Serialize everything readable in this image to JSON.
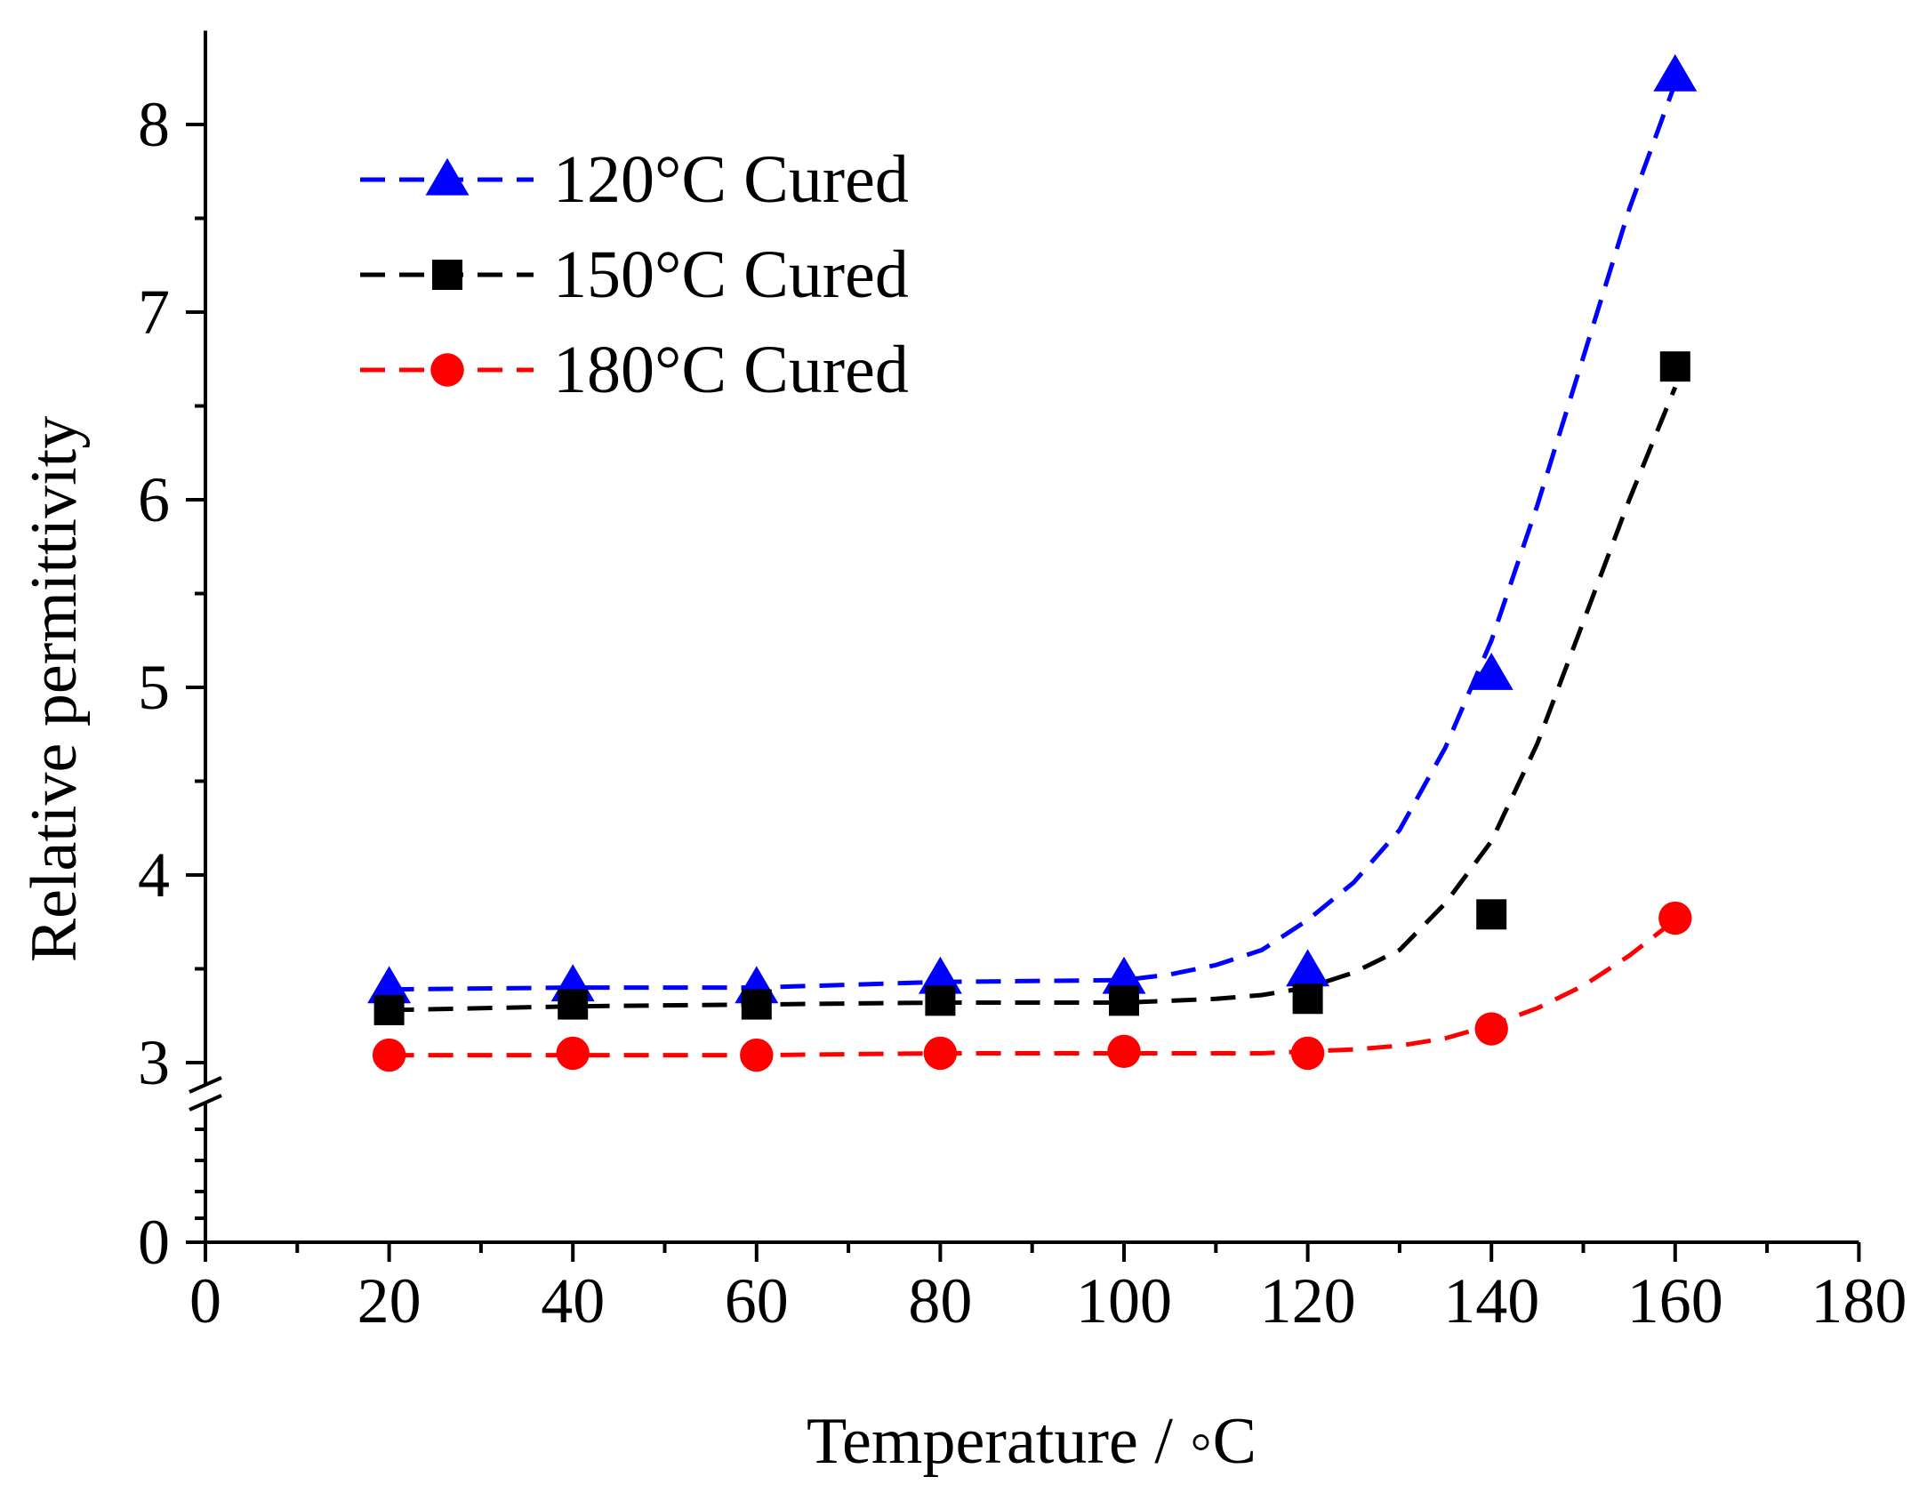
{
  "chart_data": {
    "type": "scatter",
    "xlabel": "Temperature / ◦C",
    "ylabel": "Relative permittivity",
    "xlim": [
      0,
      180
    ],
    "ylim": [
      0,
      8.5
    ],
    "y_axis_break": [
      0.5,
      3
    ],
    "x_ticks": [
      0,
      20,
      40,
      60,
      80,
      100,
      120,
      140,
      160,
      180
    ],
    "x_tick_labels": [
      "0",
      "20",
      "40",
      "60",
      "80",
      "100",
      "120",
      "140",
      "160",
      "180"
    ],
    "y_ticks": [
      0,
      3,
      4,
      5,
      6,
      7,
      8
    ],
    "y_tick_labels": [
      "0",
      "3",
      "4",
      "5",
      "6",
      "7",
      "8"
    ],
    "grid": false,
    "legend_position": "top-left",
    "x": [
      20,
      40,
      60,
      80,
      100,
      120,
      140,
      160
    ],
    "series": [
      {
        "name": "120°C Cured",
        "marker": "triangle",
        "color": "#0000ff",
        "values": [
          3.4,
          3.41,
          3.4,
          3.45,
          3.45,
          3.49,
          5.07,
          8.26
        ],
        "fit": [
          [
            20,
            3.39
          ],
          [
            40,
            3.4
          ],
          [
            60,
            3.4
          ],
          [
            80,
            3.43
          ],
          [
            100,
            3.44
          ],
          [
            105,
            3.47
          ],
          [
            110,
            3.52
          ],
          [
            115,
            3.6
          ],
          [
            120,
            3.76
          ],
          [
            125,
            3.96
          ],
          [
            130,
            4.24
          ],
          [
            135,
            4.68
          ],
          [
            140,
            5.25
          ],
          [
            145,
            5.97
          ],
          [
            150,
            6.76
          ],
          [
            155,
            7.55
          ],
          [
            160,
            8.22
          ]
        ]
      },
      {
        "name": "150°C Cured",
        "marker": "square",
        "color": "#000000",
        "values": [
          3.28,
          3.31,
          3.31,
          3.33,
          3.33,
          3.34,
          3.79,
          6.71
        ],
        "fit": [
          [
            20,
            3.28
          ],
          [
            40,
            3.3
          ],
          [
            60,
            3.31
          ],
          [
            80,
            3.32
          ],
          [
            100,
            3.32
          ],
          [
            110,
            3.34
          ],
          [
            115,
            3.36
          ],
          [
            120,
            3.4
          ],
          [
            125,
            3.48
          ],
          [
            130,
            3.6
          ],
          [
            135,
            3.85
          ],
          [
            140,
            4.18
          ],
          [
            145,
            4.7
          ],
          [
            150,
            5.35
          ],
          [
            155,
            6.0
          ],
          [
            160,
            6.6
          ]
        ]
      },
      {
        "name": "180°C Cured",
        "marker": "circle",
        "color": "#ff0000",
        "values": [
          3.04,
          3.05,
          3.04,
          3.05,
          3.06,
          3.05,
          3.18,
          3.77
        ],
        "fit": [
          [
            20,
            3.04
          ],
          [
            40,
            3.04
          ],
          [
            60,
            3.04
          ],
          [
            80,
            3.05
          ],
          [
            100,
            3.05
          ],
          [
            115,
            3.05
          ],
          [
            120,
            3.06
          ],
          [
            125,
            3.07
          ],
          [
            130,
            3.09
          ],
          [
            135,
            3.13
          ],
          [
            140,
            3.2
          ],
          [
            145,
            3.29
          ],
          [
            150,
            3.41
          ],
          [
            155,
            3.57
          ],
          [
            160,
            3.76
          ]
        ]
      }
    ]
  }
}
